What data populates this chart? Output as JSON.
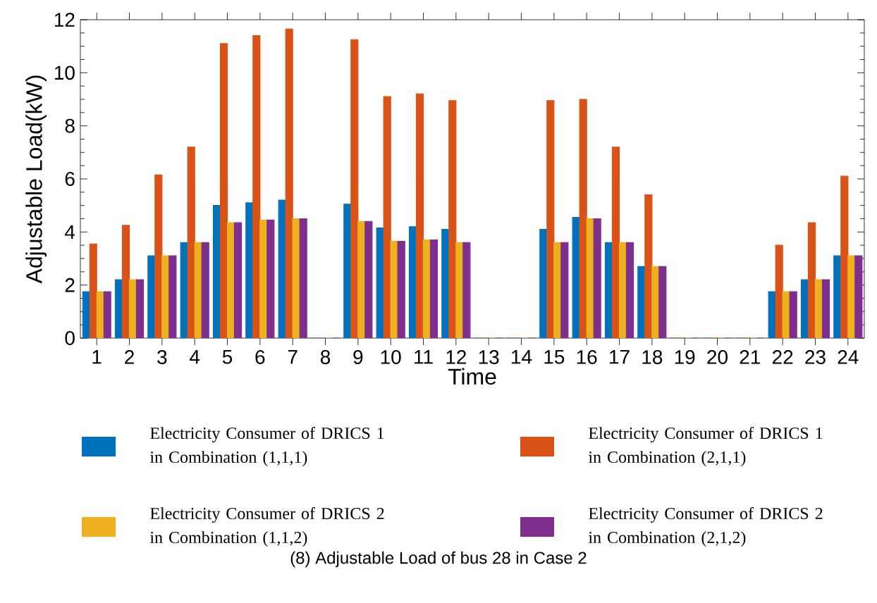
{
  "chart_data": {
    "type": "bar",
    "title": "(8) Adjustable Load of bus 28 in Case 2",
    "xlabel": "Time",
    "ylabel": "Adjustable Load(kW)",
    "categories": [
      "1",
      "2",
      "3",
      "4",
      "5",
      "6",
      "7",
      "8",
      "9",
      "10",
      "11",
      "12",
      "13",
      "14",
      "15",
      "16",
      "17",
      "18",
      "19",
      "20",
      "21",
      "22",
      "23",
      "24"
    ],
    "ylim": [
      0,
      12
    ],
    "yticks": [
      0,
      2,
      4,
      6,
      8,
      10,
      12
    ],
    "legend": "bottom",
    "series": [
      {
        "name": "Electricity Consumer of DRICS 1 in Combination (1,1,1)",
        "color": "#0072bd",
        "values": [
          1.75,
          2.2,
          3.1,
          3.6,
          5.0,
          5.1,
          5.2,
          0,
          5.05,
          4.15,
          4.2,
          4.1,
          0,
          0,
          4.1,
          4.55,
          3.6,
          2.7,
          0,
          0,
          0,
          1.75,
          2.2,
          3.1
        ]
      },
      {
        "name": "Electricity Consumer of DRICS 1 in Combination (2,1,1)",
        "color": "#d95319",
        "values": [
          3.55,
          4.25,
          6.15,
          7.2,
          11.1,
          11.4,
          11.65,
          0,
          11.25,
          9.1,
          9.2,
          8.95,
          0,
          0,
          8.95,
          9.0,
          7.2,
          5.4,
          0,
          0,
          0,
          3.5,
          4.35,
          6.1
        ]
      },
      {
        "name": "Electricity Consumer of DRICS 2 in Combination (1,1,2)",
        "color": "#edb120",
        "values": [
          1.75,
          2.2,
          3.1,
          3.6,
          4.35,
          4.45,
          4.5,
          0,
          4.4,
          3.65,
          3.7,
          3.6,
          0,
          0,
          3.6,
          4.5,
          3.6,
          2.7,
          0,
          0,
          0,
          1.75,
          2.2,
          3.1
        ]
      },
      {
        "name": "Electricity Consumer of DRICS 2 in Combination (2,1,2)",
        "color": "#7e2f8e",
        "values": [
          1.75,
          2.2,
          3.1,
          3.6,
          4.35,
          4.45,
          4.5,
          0,
          4.4,
          3.65,
          3.7,
          3.6,
          0,
          0,
          3.6,
          4.5,
          3.6,
          2.7,
          0,
          0,
          0,
          1.75,
          2.2,
          3.1
        ]
      }
    ]
  }
}
